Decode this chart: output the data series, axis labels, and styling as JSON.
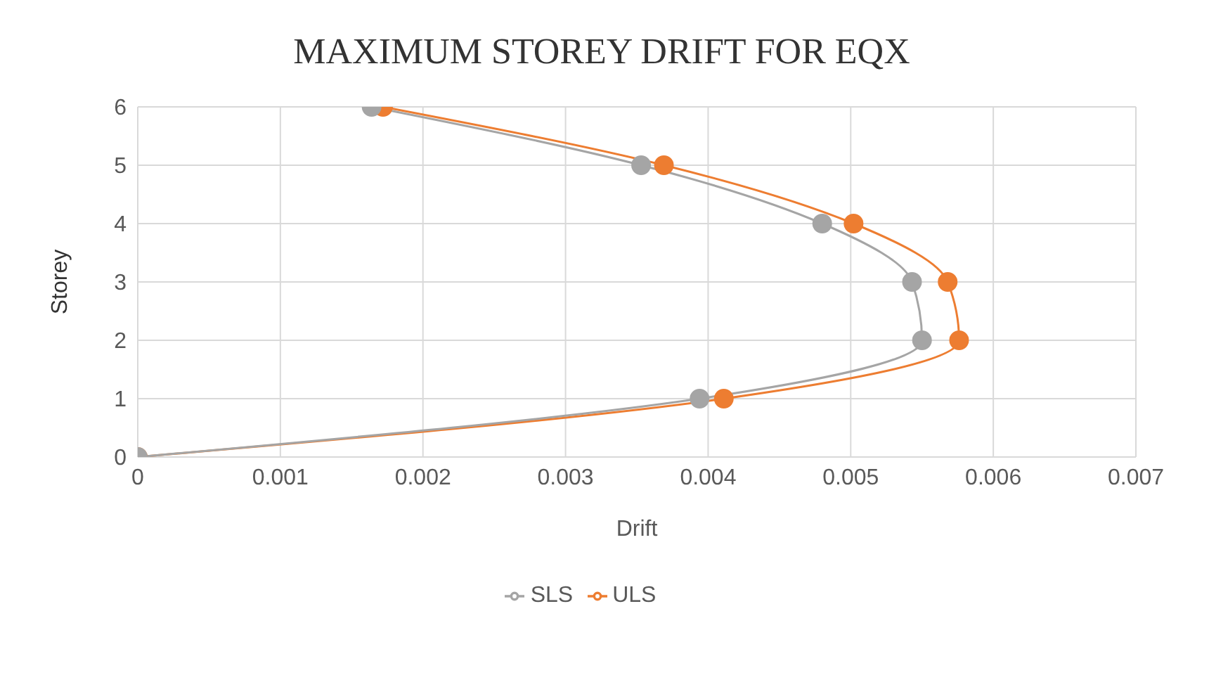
{
  "chart_data": {
    "type": "line",
    "title": "MAXIMUM STOREY DRIFT FOR EQX",
    "xlabel": "Drift",
    "ylabel": "Storey",
    "series": [
      {
        "name": "ULS",
        "color": "#ed7d31",
        "x": [
          0,
          0.00411,
          0.00576,
          0.00568,
          0.00502,
          0.00369,
          0.00172
        ],
        "values": [
          0,
          1,
          2,
          3,
          4,
          5,
          6
        ]
      },
      {
        "name": "SLS",
        "color": "#a5a5a5",
        "x": [
          0,
          0.00394,
          0.0055,
          0.00543,
          0.0048,
          0.00353,
          0.00164
        ],
        "values": [
          0,
          1,
          2,
          3,
          4,
          5,
          6
        ]
      }
    ],
    "xlim": [
      0,
      0.007
    ],
    "xticks": [
      0,
      0.001,
      0.002,
      0.003,
      0.004,
      0.005,
      0.006,
      0.007
    ],
    "ylim": [
      0,
      6
    ],
    "yticks": [
      0,
      1,
      2,
      3,
      4,
      5,
      6
    ],
    "grid": true,
    "legend": "bottom",
    "marker": "circle",
    "line_style": "solid"
  }
}
